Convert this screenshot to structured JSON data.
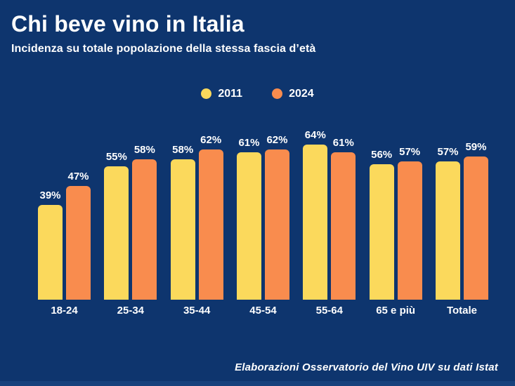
{
  "header": {
    "title": "Chi beve vino in Italia",
    "subtitle": "Incidenza su totale popolazione della stessa fascia d’età"
  },
  "legend": [
    {
      "label": "2011",
      "color": "#FBD95C"
    },
    {
      "label": "2024",
      "color": "#F98C4E"
    }
  ],
  "chart_data": {
    "type": "bar",
    "title": "Chi beve vino in Italia",
    "subtitle": "Incidenza su totale popolazione della stessa fascia d’età",
    "categories": [
      "18-24",
      "25-34",
      "35-44",
      "45-54",
      "55-64",
      "65 e più",
      "Totale"
    ],
    "series": [
      {
        "name": "2011",
        "color": "#FBD95C",
        "values": [
          39,
          55,
          58,
          61,
          64,
          56,
          57
        ]
      },
      {
        "name": "2024",
        "color": "#F98C4E",
        "values": [
          47,
          58,
          62,
          62,
          61,
          57,
          59
        ]
      }
    ],
    "value_suffix": "%",
    "xlabel": "",
    "ylabel": "",
    "ylim": [
      0,
      70
    ],
    "grid": false,
    "legend_position": "top-center"
  },
  "footer": {
    "source": "Elaborazioni Osservatorio del Vino UIV su dati Istat"
  },
  "colors": {
    "background": "#0E356E",
    "text": "#FFFFFF",
    "series_2011": "#FBD95C",
    "series_2024": "#F98C4E",
    "bottom_strip": "#17417C"
  }
}
